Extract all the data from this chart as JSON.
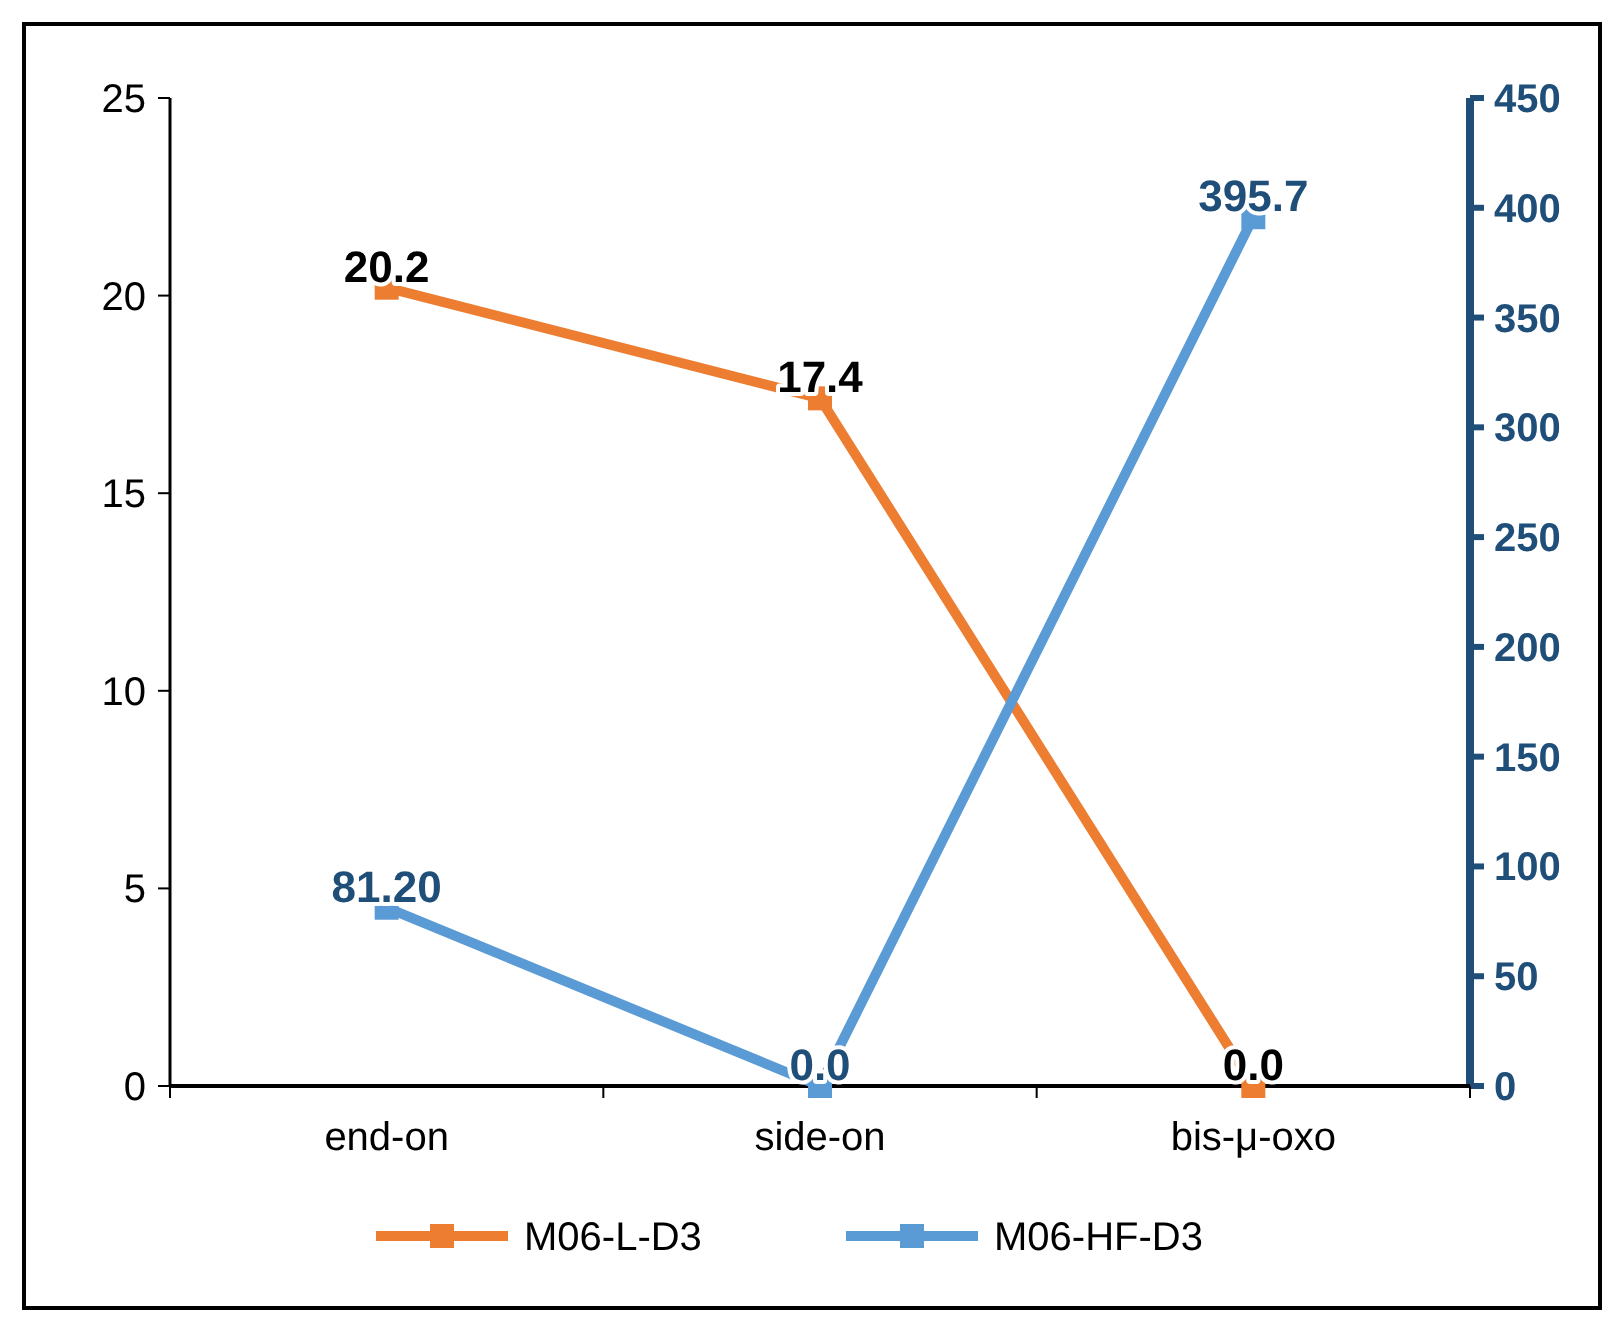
{
  "chart_data": {
    "type": "line",
    "categories": [
      "end-on",
      "side-on",
      "bis-μ-oxo"
    ],
    "series": [
      {
        "name": "M06-L-D3",
        "color": "#ed7d31",
        "values": [
          20.2,
          17.4,
          0.0
        ],
        "value_labels": [
          "20.2",
          "17.4",
          "0.0"
        ]
      },
      {
        "name": "M06-HF-D3",
        "color": "#5b9bd5",
        "values": [
          81.2,
          0.0,
          395.7
        ],
        "value_labels": [
          "81.20",
          "0.0",
          "395.7"
        ],
        "axis": "y2"
      }
    ],
    "ylim": [
      0,
      25
    ],
    "yticks": [
      0,
      5,
      10,
      15,
      20,
      25
    ],
    "y2lim": [
      0,
      450
    ],
    "y2ticks": [
      0,
      50,
      100,
      150,
      200,
      250,
      300,
      350,
      400,
      450
    ],
    "legend": "bottom",
    "marker": "square",
    "line_style": "solid"
  }
}
